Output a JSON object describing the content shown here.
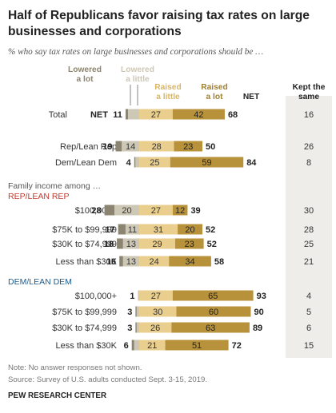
{
  "colors": {
    "lowered_a_lot": "#8b8470",
    "lowered_a_little": "#cdc7b6",
    "raised_a_little": "#e9ce8e",
    "raised_a_lot": "#b8923a",
    "kept_same_bg": "#efedea",
    "rep_label": "#c63a2e",
    "dem_label": "#1f5b8c",
    "hdr_lowered": "#8b8470",
    "hdr_raised_little": "#d8b565",
    "hdr_raised_lot": "#a07f2e"
  },
  "chart_data": {
    "type": "bar",
    "title": "Half of Republicans favor raising tax rates on large businesses and corporations",
    "subtitle": "% who say tax rates on large businesses and corporations should be …",
    "headers": {
      "lowered_a_lot": [
        "Lowered",
        "a lot"
      ],
      "lowered_a_little": [
        "Lowered",
        "a little"
      ],
      "raised_a_little": [
        "Raised",
        "a little"
      ],
      "raised_a_lot": [
        "Raised",
        "a lot"
      ],
      "net_right": "NET",
      "net_left": "NET",
      "kept_same": [
        "Kept the",
        "same"
      ]
    },
    "section_labels": {
      "family_income": "Family income among …",
      "rep": "REP/LEAN REP",
      "dem": "DEM/LEAN DEM"
    },
    "rows": [
      {
        "label": "Total",
        "lowered_a_lot": 2,
        "lowered_a_little": 9,
        "lowered_a_little_label": "",
        "raised_a_little": 27,
        "raised_a_lot": 42,
        "net_lowered": 11,
        "net_raised": 68,
        "kept_same": 16
      },
      {
        "label": "Rep/Lean Rep",
        "lowered_a_lot": 5,
        "lowered_a_little": 14,
        "lowered_a_little_label": "14",
        "raised_a_little": 28,
        "raised_a_lot": 23,
        "net_lowered": 19,
        "net_raised": 50,
        "kept_same": 26
      },
      {
        "label": "Dem/Lean Dem",
        "lowered_a_lot": 1,
        "lowered_a_little": 3,
        "lowered_a_little_label": "",
        "raised_a_little": 25,
        "raised_a_lot": 59,
        "net_lowered": 4,
        "net_raised": 84,
        "kept_same": 8
      },
      {
        "label": "$100,000+",
        "lowered_a_lot": 8,
        "lowered_a_little": 20,
        "lowered_a_little_label": "20",
        "raised_a_little": 27,
        "raised_a_lot": 12,
        "net_lowered": 28,
        "net_raised": 39,
        "kept_same": 30
      },
      {
        "label": "$75K to $99,999",
        "lowered_a_lot": 6,
        "lowered_a_little": 11,
        "lowered_a_little_label": "11",
        "raised_a_little": 31,
        "raised_a_lot": 20,
        "net_lowered": 17,
        "net_raised": 52,
        "kept_same": 28
      },
      {
        "label": "$30K to $74,999",
        "lowered_a_lot": 5,
        "lowered_a_little": 13,
        "lowered_a_little_label": "13",
        "raised_a_little": 29,
        "raised_a_lot": 23,
        "net_lowered": 18,
        "net_raised": 52,
        "kept_same": 25
      },
      {
        "label": "Less than $30K",
        "lowered_a_lot": 3,
        "lowered_a_little": 13,
        "lowered_a_little_label": "13",
        "raised_a_little": 24,
        "raised_a_lot": 34,
        "net_lowered": 16,
        "net_raised": 58,
        "kept_same": 21
      },
      {
        "label": "$100,000+",
        "lowered_a_lot": 0,
        "lowered_a_little": 1,
        "lowered_a_little_label": "",
        "raised_a_little": 27,
        "raised_a_lot": 65,
        "net_lowered": 1,
        "net_raised": 93,
        "kept_same": 4
      },
      {
        "label": "$75K to $99,999",
        "lowered_a_lot": 1,
        "lowered_a_little": 2,
        "lowered_a_little_label": "",
        "raised_a_little": 30,
        "raised_a_lot": 60,
        "net_lowered": 3,
        "net_raised": 90,
        "kept_same": 5
      },
      {
        "label": "$30K to $74,999",
        "lowered_a_lot": 1,
        "lowered_a_little": 2,
        "lowered_a_little_label": "",
        "raised_a_little": 26,
        "raised_a_lot": 63,
        "net_lowered": 3,
        "net_raised": 89,
        "kept_same": 6
      },
      {
        "label": "Less than $30K",
        "lowered_a_lot": 2,
        "lowered_a_little": 4,
        "lowered_a_little_label": "",
        "raised_a_little": 21,
        "raised_a_lot": 51,
        "net_lowered": 6,
        "net_raised": 72,
        "kept_same": 15
      }
    ]
  },
  "footer": {
    "note": "Note: No answer responses not shown.",
    "source": "Source: Survey of U.S. adults conducted Sept. 3-15, 2019.",
    "org": "PEW RESEARCH CENTER"
  }
}
